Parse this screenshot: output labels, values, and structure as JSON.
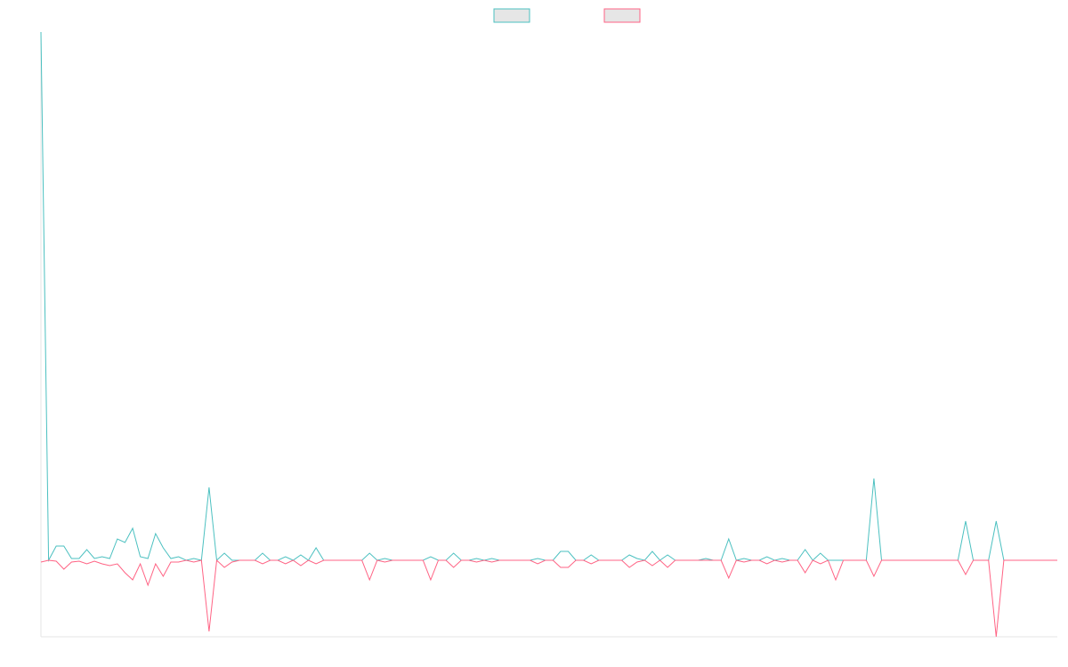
{
  "chart_data": {
    "type": "line",
    "legend": "top",
    "ylim": [
      -86,
      594
    ],
    "categories": [
      null,
      null,
      null,
      null,
      null,
      null,
      null,
      null,
      null,
      null,
      null,
      null,
      null,
      null,
      null,
      null,
      null,
      null,
      null,
      null,
      null,
      null,
      null,
      null,
      null,
      null,
      null,
      null,
      null,
      null,
      null,
      null,
      null,
      null,
      null,
      null,
      null,
      null,
      null,
      null,
      null,
      null,
      null,
      null,
      null,
      null,
      null,
      null,
      null,
      null,
      null,
      null,
      null,
      null,
      null,
      null,
      null,
      null,
      null,
      null,
      null,
      null,
      null,
      null,
      null,
      null,
      null,
      null,
      null,
      null,
      null,
      null,
      null,
      null,
      null,
      null,
      null,
      null,
      null,
      null,
      null,
      null,
      null,
      null,
      null,
      null,
      null,
      null,
      null,
      null,
      null,
      null,
      null,
      null,
      null,
      null,
      null,
      null,
      null,
      null,
      null,
      null,
      null,
      null,
      null,
      null,
      null,
      null,
      null,
      null,
      null,
      null,
      null,
      null,
      null,
      null,
      null,
      null,
      null,
      null,
      null,
      null,
      null,
      null,
      null,
      null,
      null,
      null,
      null,
      null,
      null,
      null,
      null,
      null
    ],
    "series": [
      {
        "color": "#4bc0c0",
        "values": [
          594,
          0,
          16,
          16,
          2,
          2,
          12,
          2,
          4,
          2,
          24,
          20,
          36,
          4,
          2,
          30,
          14,
          2,
          4,
          0,
          2,
          0,
          82,
          0,
          8,
          0,
          0,
          0,
          0,
          8,
          0,
          0,
          4,
          0,
          6,
          0,
          14,
          0,
          0,
          0,
          0,
          0,
          0,
          8,
          0,
          2,
          0,
          0,
          0,
          0,
          0,
          4,
          0,
          0,
          8,
          0,
          0,
          2,
          0,
          2,
          0,
          0,
          0,
          0,
          0,
          2,
          0,
          0,
          10,
          10,
          0,
          0,
          6,
          0,
          0,
          0,
          0,
          6,
          2,
          0,
          10,
          0,
          6,
          0,
          0,
          0,
          0,
          2,
          0,
          0,
          24,
          0,
          2,
          0,
          0,
          4,
          0,
          2,
          0,
          0,
          12,
          0,
          8,
          0,
          0,
          0,
          0,
          0,
          0,
          92,
          0,
          0,
          0,
          0,
          0,
          0,
          0,
          0,
          0,
          0,
          0,
          44,
          0,
          0,
          0,
          44,
          0,
          0,
          0,
          0,
          0,
          0,
          0,
          0
        ]
      },
      {
        "color": "#ff6384",
        "values": [
          -2,
          0,
          -1,
          -10,
          -2,
          -1,
          -4,
          -1,
          -4,
          -6,
          -4,
          -14,
          -22,
          -4,
          -28,
          -4,
          -18,
          -2,
          -2,
          0,
          -2,
          0,
          -80,
          0,
          -8,
          -2,
          0,
          0,
          0,
          -4,
          0,
          0,
          -4,
          0,
          -6,
          0,
          -4,
          0,
          0,
          0,
          0,
          0,
          0,
          -22,
          0,
          -2,
          0,
          0,
          0,
          0,
          0,
          -22,
          0,
          0,
          -8,
          0,
          0,
          -2,
          0,
          -2,
          0,
          0,
          0,
          0,
          0,
          -4,
          0,
          0,
          -8,
          -8,
          0,
          0,
          -4,
          0,
          0,
          0,
          0,
          -8,
          -2,
          0,
          -6,
          0,
          -8,
          0,
          0,
          0,
          0,
          0,
          0,
          0,
          -20,
          0,
          -2,
          0,
          0,
          -4,
          0,
          -2,
          0,
          0,
          -14,
          0,
          -4,
          0,
          -22,
          0,
          0,
          0,
          0,
          -18,
          0,
          0,
          0,
          0,
          0,
          0,
          0,
          0,
          0,
          0,
          0,
          -16,
          0,
          0,
          0,
          -86,
          0,
          0,
          0,
          0,
          0,
          0,
          0,
          0
        ]
      }
    ]
  }
}
